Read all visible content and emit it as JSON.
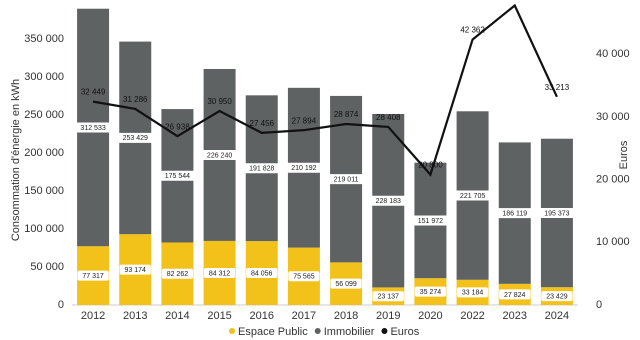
{
  "chart_data": {
    "type": "stacked-bar-line",
    "categories": [
      "2012",
      "2013",
      "2014",
      "2015",
      "2016",
      "2017",
      "2018",
      "2019",
      "2020",
      "2022",
      "2023",
      "2024"
    ],
    "y_label": "Consommation d'énergie en kWh",
    "y2_label": "Euros",
    "ylim": [
      0,
      400000
    ],
    "yticks": [
      0,
      {
        "value": 50000,
        "label": "50 000"
      },
      {
        "value": 100000,
        "label": "100 000"
      },
      {
        "value": 150000,
        "label": "150 000"
      },
      {
        "value": 200000,
        "label": "200 000"
      },
      {
        "value": 250000,
        "label": "250 000"
      },
      {
        "value": 300000,
        "label": "300 000"
      },
      {
        "value": 350000,
        "label": "350 000"
      }
    ],
    "y2lim": [
      0,
      48500
    ],
    "y2ticks": [
      0,
      {
        "value": 10000,
        "label": "10 000"
      },
      {
        "value": 20000,
        "label": "20 000"
      },
      {
        "value": 30000,
        "label": "30 000"
      },
      {
        "value": 40000,
        "label": "40 000"
      }
    ],
    "legend": "bottom",
    "series": [
      {
        "name": "Espace Public",
        "color": "#f2c21b",
        "kind": "bar",
        "values": [
          77317,
          93174,
          82262,
          84312,
          84056,
          75565,
          56099,
          23137,
          35274,
          33184,
          27824,
          23429
        ],
        "value_labels": [
          "77 317",
          "93 174",
          "82 262",
          "84 312",
          "84 056",
          "75 565",
          "56 099",
          "23 137",
          "35 274",
          "33 184",
          "27 824",
          "23 429"
        ]
      },
      {
        "name": "Immobilier",
        "color": "#5f6263",
        "kind": "bar",
        "values": [
          312533,
          253429,
          175544,
          226240,
          191828,
          210192,
          219011,
          228183,
          151972,
          221705,
          186119,
          195373
        ],
        "value_labels": [
          "312 533",
          "253 429",
          "175 544",
          "226 240",
          "191 828",
          "210 192",
          "219 011",
          "228 183",
          "151 972",
          "221 705",
          "186 119",
          "195 373"
        ]
      },
      {
        "name": "Euros",
        "color": "#111111",
        "kind": "line",
        "axis": "y2",
        "values": [
          32449,
          31286,
          26938,
          30950,
          27456,
          27894,
          28874,
          28408,
          20800,
          42362,
          47784,
          33213
        ],
        "value_labels": [
          "32 449",
          "31 286",
          "26 938",
          "30 950",
          "27 456",
          "27 894",
          "28 874",
          "28 408",
          "20 800",
          "42 362",
          "47 784",
          "33 213"
        ]
      }
    ]
  }
}
